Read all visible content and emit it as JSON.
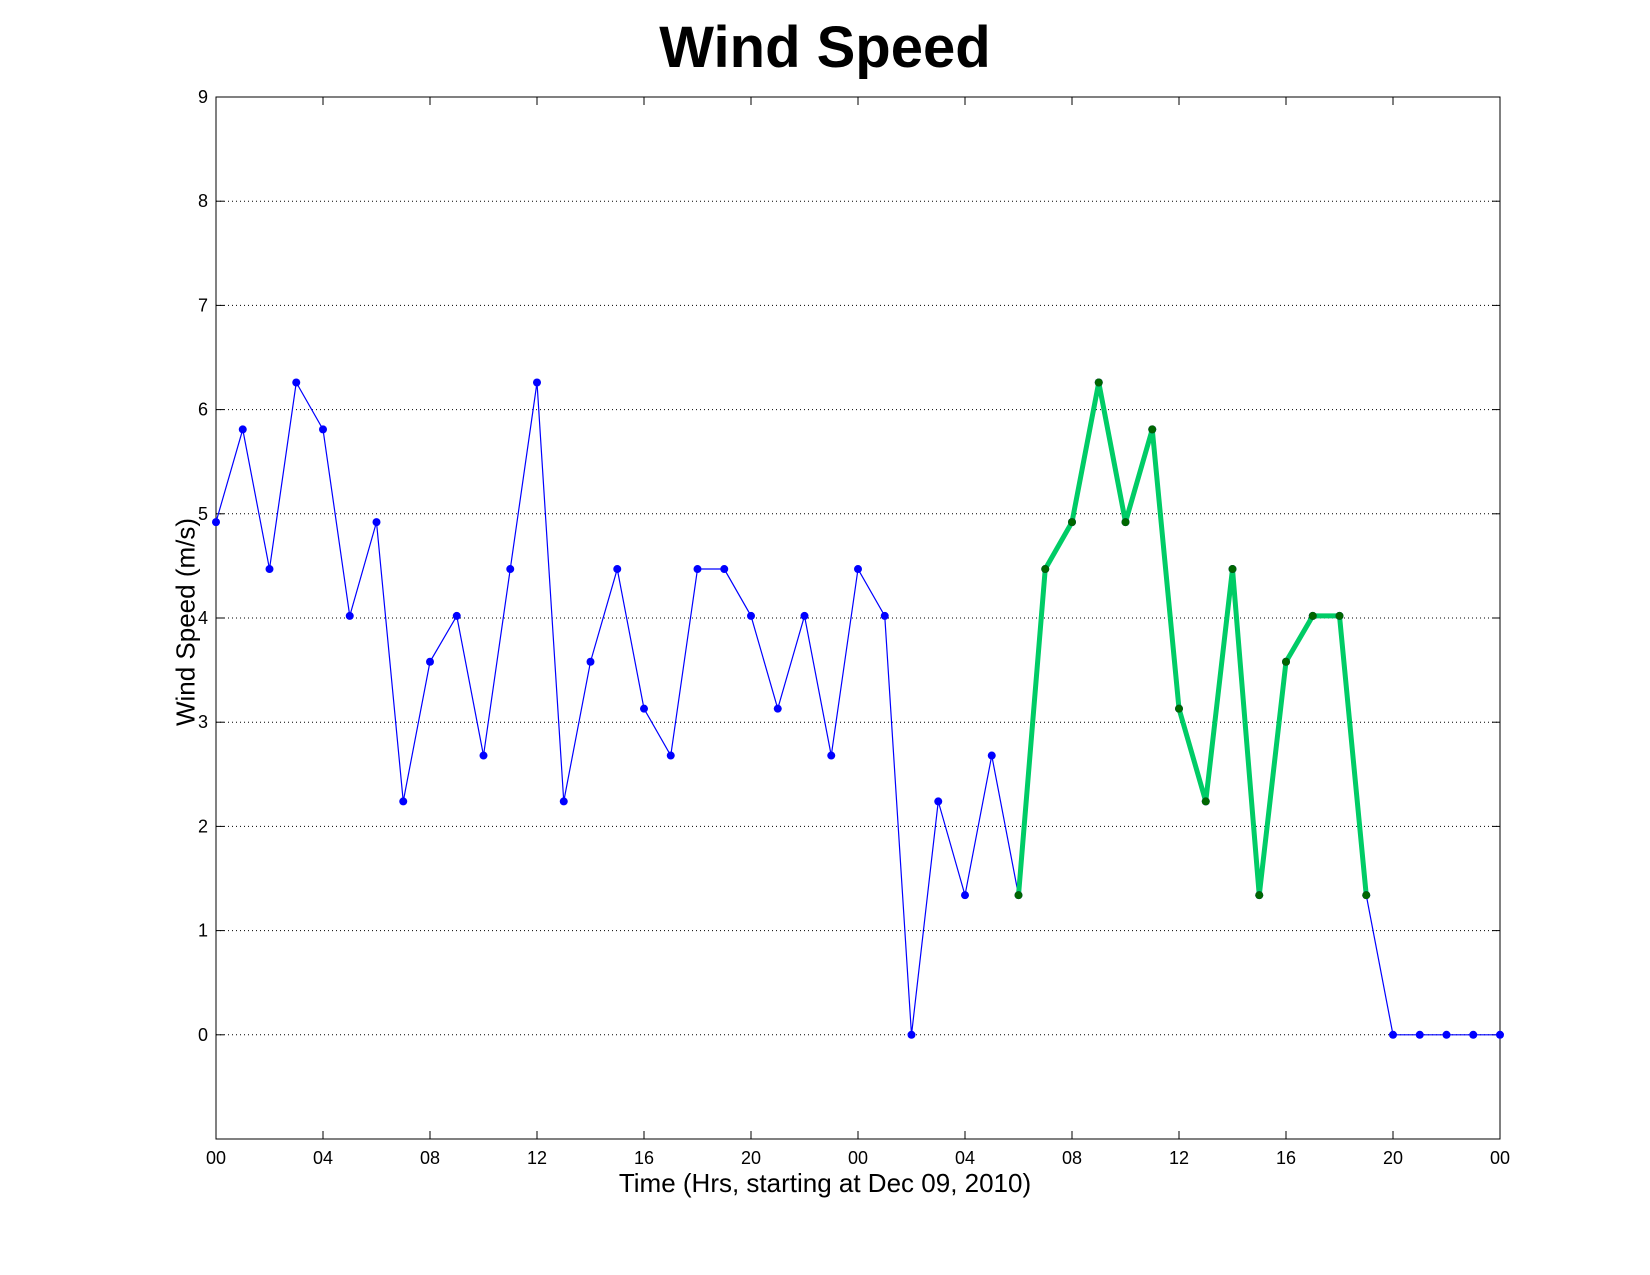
{
  "chart_data": {
    "type": "line",
    "title": "Wind Speed",
    "xlabel": "Time (Hrs, starting at Dec 09, 2010)",
    "ylabel": "Wind Speed (m/s)",
    "xlim": [
      0,
      48
    ],
    "ylim": [
      -1,
      9
    ],
    "x_ticks": [
      0,
      4,
      8,
      12,
      16,
      20,
      24,
      28,
      32,
      36,
      40,
      44,
      48
    ],
    "x_tick_labels": [
      "00",
      "04",
      "08",
      "12",
      "16",
      "20",
      "00",
      "04",
      "08",
      "12",
      "16",
      "20",
      "00"
    ],
    "y_ticks": [
      0,
      1,
      2,
      3,
      4,
      5,
      6,
      7,
      8,
      9
    ],
    "y_tick_labels": [
      "0",
      "1",
      "2",
      "3",
      "4",
      "5",
      "6",
      "7",
      "8",
      "9"
    ],
    "grid": "horizontal dotted",
    "series": [
      {
        "color": "#0000ff",
        "marker_color": "#0000ff",
        "x": [
          0,
          1,
          2,
          3,
          4,
          5,
          6,
          7,
          8,
          9,
          10,
          11,
          12,
          13,
          14,
          15,
          16,
          17,
          18,
          19,
          20,
          21,
          22,
          23,
          24,
          25,
          26,
          27,
          28,
          29,
          30,
          31,
          32,
          33,
          34,
          35,
          36,
          37,
          38,
          39,
          40,
          41,
          42,
          43,
          44,
          45,
          46,
          47,
          48
        ],
        "y": [
          4.92,
          5.81,
          4.47,
          6.26,
          5.81,
          4.02,
          4.92,
          2.24,
          3.58,
          4.02,
          2.68,
          4.47,
          6.26,
          2.24,
          3.58,
          4.47,
          3.13,
          2.68,
          4.47,
          4.47,
          4.02,
          3.13,
          4.02,
          2.68,
          4.47,
          4.02,
          0,
          2.24,
          1.34,
          2.68,
          1.34,
          4.47,
          4.92,
          6.26,
          4.92,
          5.81,
          3.13,
          2.24,
          4.47,
          1.34,
          3.58,
          4.02,
          4.02,
          1.34,
          0,
          0,
          0,
          0,
          0
        ]
      },
      {
        "color": "#00cc66",
        "marker_color": "#006600",
        "x": [
          30,
          31,
          32,
          33,
          34,
          35,
          36,
          37,
          38,
          39,
          40,
          41,
          42,
          43
        ],
        "y": [
          1.34,
          4.47,
          4.92,
          6.26,
          4.92,
          5.81,
          3.13,
          2.24,
          4.47,
          1.34,
          3.58,
          4.02,
          4.02,
          1.34
        ]
      }
    ]
  }
}
